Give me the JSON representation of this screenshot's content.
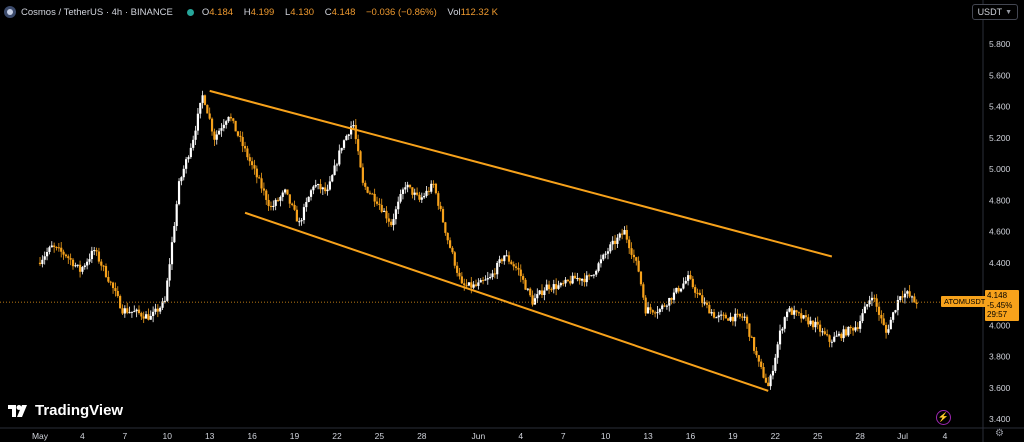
{
  "header": {
    "title": "Cosmos / TetherUS · 4h · BINANCE",
    "ohlc": [
      {
        "label": "O",
        "value": "4.184"
      },
      {
        "label": "H",
        "value": "4.199"
      },
      {
        "label": "L",
        "value": "4.130"
      },
      {
        "label": "C",
        "value": "4.148"
      },
      {
        "label": "",
        "value": "−0.036 (−0.86%)"
      }
    ],
    "volume_label": "Vol",
    "volume_value": "112.32 K"
  },
  "currency_button": {
    "label": "USDT"
  },
  "watermark": "TradingView",
  "price_tag": {
    "symbol": "ATOMUSDT",
    "price": "4.148",
    "change": "-5.45%",
    "countdown": "29:57"
  },
  "colors": {
    "up": "#ffffff",
    "down": "#f7a21b",
    "channel": "#f7a21b",
    "axis_text": "#d1d4dc"
  },
  "chart_data": {
    "type": "candlestick",
    "title": "Cosmos / TetherUS · 4h · BINANCE",
    "y_ticks": [
      "5.800",
      "5.600",
      "5.400",
      "5.200",
      "5.000",
      "4.800",
      "4.600",
      "4.400",
      "4.200",
      "4.000",
      "3.800",
      "3.600",
      "3.400"
    ],
    "ylim": [
      3.35,
      5.95
    ],
    "x_ticks": [
      "May",
      "4",
      "7",
      "10",
      "13",
      "16",
      "19",
      "22",
      "25",
      "28",
      "Jun",
      "4",
      "7",
      "10",
      "13",
      "16",
      "19",
      "22",
      "25",
      "28",
      "Jul",
      "4"
    ],
    "x_tick_days": [
      0,
      3,
      6,
      9,
      12,
      15,
      18,
      21,
      24,
      27,
      31,
      34,
      37,
      40,
      43,
      46,
      49,
      52,
      55,
      58,
      61,
      64
    ],
    "last_price": 4.148,
    "price_path": [
      [
        0,
        4.4
      ],
      [
        1,
        4.5
      ],
      [
        2,
        4.45
      ],
      [
        3,
        4.35
      ],
      [
        4,
        4.48
      ],
      [
        5,
        4.3
      ],
      [
        6,
        4.1
      ],
      [
        7,
        4.08
      ],
      [
        8,
        4.05
      ],
      [
        9,
        4.15
      ],
      [
        10,
        4.9
      ],
      [
        11,
        5.2
      ],
      [
        11.7,
        5.48
      ],
      [
        12.5,
        5.2
      ],
      [
        13.5,
        5.35
      ],
      [
        14.5,
        5.15
      ],
      [
        15.5,
        4.95
      ],
      [
        16.5,
        4.75
      ],
      [
        17.5,
        4.85
      ],
      [
        18.5,
        4.65
      ],
      [
        19.5,
        4.9
      ],
      [
        20.5,
        4.85
      ],
      [
        21.5,
        5.15
      ],
      [
        22.3,
        5.3
      ],
      [
        23,
        4.9
      ],
      [
        24,
        4.8
      ],
      [
        25,
        4.65
      ],
      [
        26,
        4.9
      ],
      [
        27,
        4.8
      ],
      [
        28,
        4.9
      ],
      [
        29,
        4.55
      ],
      [
        30,
        4.25
      ],
      [
        31,
        4.25
      ],
      [
        32,
        4.3
      ],
      [
        33,
        4.45
      ],
      [
        34,
        4.35
      ],
      [
        35,
        4.15
      ],
      [
        36,
        4.25
      ],
      [
        37,
        4.25
      ],
      [
        38,
        4.3
      ],
      [
        39,
        4.3
      ],
      [
        40.5,
        4.5
      ],
      [
        41.5,
        4.6
      ],
      [
        42.5,
        4.35
      ],
      [
        43,
        4.1
      ],
      [
        44,
        4.1
      ],
      [
        45,
        4.2
      ],
      [
        46,
        4.3
      ],
      [
        47,
        4.15
      ],
      [
        48,
        4.05
      ],
      [
        49,
        4.05
      ],
      [
        50,
        4.05
      ],
      [
        51,
        3.75
      ],
      [
        51.7,
        3.6
      ],
      [
        52.5,
        3.95
      ],
      [
        53,
        4.1
      ],
      [
        54,
        4.05
      ],
      [
        55,
        4.0
      ],
      [
        56,
        3.9
      ],
      [
        57,
        3.95
      ],
      [
        58,
        4.0
      ],
      [
        59,
        4.2
      ],
      [
        60,
        3.95
      ],
      [
        61,
        4.2
      ],
      [
        61.5,
        4.2
      ],
      [
        62,
        4.15
      ]
    ],
    "channel": {
      "upper": [
        [
          12.0,
          5.5
        ],
        [
          56.0,
          4.44
        ]
      ],
      "lower": [
        [
          14.5,
          4.72
        ],
        [
          51.5,
          3.58
        ]
      ]
    },
    "current_price_line": 4.148,
    "grid": false,
    "legend": "none"
  }
}
